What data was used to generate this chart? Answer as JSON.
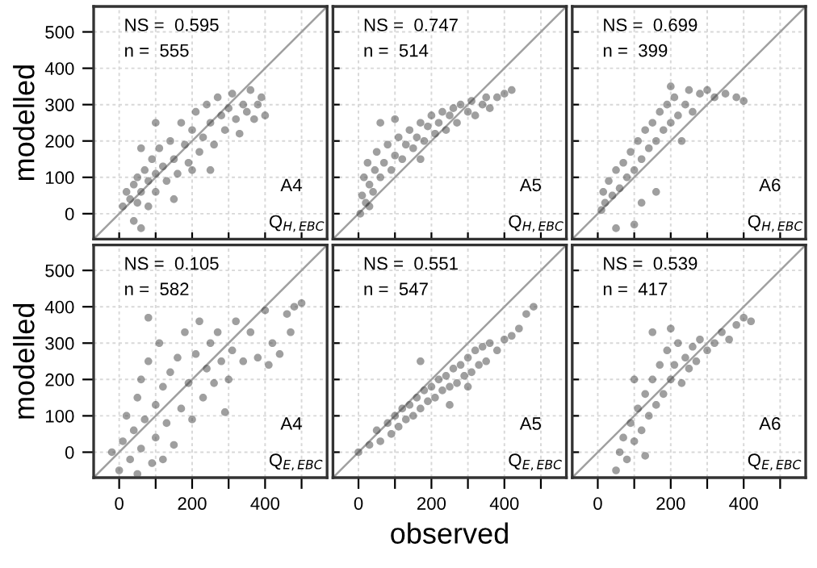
{
  "chart_data": [
    {
      "type": "scatter",
      "ylabel": "modelled",
      "annotations": [
        "NS =  0.595",
        "n =  555",
        "A4",
        "Q$_{H,EBC}$"
      ],
      "xlim": [
        -70,
        570
      ],
      "ylim": [
        -70,
        570
      ],
      "xticks": [
        0,
        {
          "value": 100,
          "label": null
        },
        200,
        {
          "value": 300,
          "label": null
        },
        400,
        {
          "value": 500,
          "label": null
        }
      ],
      "yticks": [
        0,
        100,
        200,
        300,
        400,
        500
      ],
      "tick_labels": "y",
      "grid": true,
      "series": [
        {
          "type": "scatter",
          "marker": "circle",
          "color": "#404040",
          "x": [
            10,
            20,
            30,
            40,
            50,
            50,
            60,
            70,
            80,
            80,
            90,
            100,
            100,
            110,
            120,
            130,
            140,
            150,
            160,
            170,
            180,
            190,
            200,
            210,
            220,
            230,
            240,
            250,
            260,
            270,
            280,
            290,
            300,
            310,
            320,
            330,
            340,
            350,
            360,
            370,
            380,
            390,
            400,
            40,
            60,
            150,
            200,
            60,
            100,
            250
          ],
          "values": [
            20,
            60,
            40,
            80,
            30,
            100,
            60,
            120,
            20,
            90,
            150,
            60,
            110,
            180,
            130,
            90,
            200,
            150,
            110,
            250,
            190,
            140,
            230,
            280,
            170,
            210,
            300,
            250,
            190,
            320,
            270,
            230,
            290,
            330,
            260,
            220,
            300,
            280,
            340,
            260,
            300,
            320,
            270,
            -20,
            -40,
            40,
            120,
            180,
            250,
            120
          ]
        },
        {
          "type": "line",
          "color": "#a0a0a0",
          "x": [
            -70,
            570
          ],
          "values": [
            -70,
            570
          ]
        }
      ]
    },
    {
      "type": "scatter",
      "annotations": [
        "NS =  0.747",
        "n =  514",
        "A5",
        "Q$_{H,EBC}$"
      ],
      "xlim": [
        -70,
        570
      ],
      "ylim": [
        -70,
        570
      ],
      "xticks": [
        0,
        {
          "value": 100,
          "label": null
        },
        200,
        {
          "value": 300,
          "label": null
        },
        400,
        {
          "value": 500,
          "label": null
        }
      ],
      "yticks": [
        0,
        100,
        200,
        300,
        400,
        500
      ],
      "tick_labels": false,
      "grid": true,
      "series": [
        {
          "type": "scatter",
          "marker": "circle",
          "color": "#404040",
          "x": [
            5,
            10,
            15,
            20,
            25,
            30,
            40,
            45,
            50,
            60,
            70,
            80,
            90,
            100,
            110,
            120,
            130,
            140,
            150,
            160,
            170,
            180,
            190,
            200,
            210,
            220,
            230,
            240,
            250,
            260,
            270,
            280,
            300,
            310,
            320,
            340,
            350,
            360,
            380,
            400,
            420,
            60,
            100,
            170,
            30
          ],
          "values": [
            0,
            50,
            100,
            30,
            140,
            80,
            60,
            120,
            170,
            100,
            140,
            190,
            120,
            160,
            210,
            150,
            190,
            230,
            180,
            210,
            250,
            200,
            240,
            270,
            220,
            250,
            280,
            230,
            270,
            290,
            250,
            300,
            280,
            310,
            270,
            300,
            320,
            290,
            320,
            330,
            340,
            250,
            260,
            150,
            20
          ]
        },
        {
          "type": "line",
          "color": "#a0a0a0",
          "x": [
            -70,
            570
          ],
          "values": [
            -70,
            570
          ]
        }
      ]
    },
    {
      "type": "scatter",
      "annotations": [
        "NS =  0.699",
        "n =  399",
        "A6",
        "Q$_{H,EBC}$"
      ],
      "xlim": [
        -70,
        570
      ],
      "ylim": [
        -70,
        570
      ],
      "xticks": [
        0,
        {
          "value": 100,
          "label": null
        },
        200,
        {
          "value": 300,
          "label": null
        },
        400,
        {
          "value": 500,
          "label": null
        }
      ],
      "yticks": [
        0,
        100,
        200,
        300,
        400,
        500
      ],
      "tick_labels": false,
      "grid": true,
      "series": [
        {
          "type": "scatter",
          "marker": "circle",
          "color": "#404040",
          "x": [
            10,
            15,
            20,
            30,
            40,
            50,
            60,
            70,
            80,
            90,
            100,
            110,
            120,
            130,
            140,
            150,
            160,
            170,
            180,
            190,
            200,
            210,
            220,
            240,
            250,
            260,
            280,
            300,
            320,
            350,
            380,
            400,
            200,
            100,
            50,
            120,
            160,
            230
          ],
          "values": [
            10,
            60,
            30,
            90,
            50,
            120,
            70,
            140,
            100,
            170,
            120,
            200,
            150,
            230,
            180,
            250,
            200,
            280,
            230,
            300,
            250,
            320,
            270,
            300,
            340,
            280,
            330,
            340,
            320,
            330,
            320,
            310,
            350,
            -30,
            -40,
            30,
            60,
            200
          ]
        },
        {
          "type": "line",
          "color": "#a0a0a0",
          "x": [
            -70,
            570
          ],
          "values": [
            -70,
            570
          ]
        }
      ]
    },
    {
      "type": "scatter",
      "ylabel": "modelled",
      "annotations": [
        "NS =  0.105",
        "n =  582",
        "A4",
        "Q$_{E,EBC}$"
      ],
      "xlim": [
        -70,
        570
      ],
      "ylim": [
        -70,
        570
      ],
      "xticks": [
        0,
        {
          "value": 100,
          "label": null
        },
        200,
        {
          "value": 300,
          "label": null
        },
        400,
        {
          "value": 500,
          "label": null
        }
      ],
      "yticks": [
        0,
        100,
        200,
        300,
        400,
        500
      ],
      "grid": true,
      "series": [
        {
          "type": "scatter",
          "marker": "circle",
          "color": "#404040",
          "x": [
            -20,
            0,
            10,
            20,
            30,
            40,
            50,
            60,
            60,
            70,
            80,
            90,
            100,
            100,
            110,
            120,
            130,
            140,
            150,
            160,
            170,
            180,
            190,
            200,
            210,
            220,
            230,
            240,
            250,
            260,
            270,
            280,
            290,
            300,
            310,
            320,
            340,
            360,
            380,
            400,
            410,
            420,
            440,
            460,
            480,
            500,
            470,
            120,
            80,
            50
          ],
          "values": [
            0,
            -50,
            30,
            100,
            -20,
            60,
            150,
            10,
            200,
            90,
            250,
            -30,
            130,
            40,
            300,
            180,
            80,
            220,
            20,
            260,
            120,
            330,
            190,
            90,
            270,
            360,
            150,
            230,
            300,
            190,
            330,
            250,
            110,
            200,
            280,
            360,
            250,
            330,
            260,
            390,
            240,
            300,
            270,
            380,
            400,
            410,
            330,
            -20,
            370,
            -60
          ]
        },
        {
          "type": "line",
          "color": "#a0a0a0",
          "x": [
            -70,
            570
          ],
          "values": [
            -70,
            570
          ]
        }
      ]
    },
    {
      "type": "scatter",
      "xlabel": "observed",
      "annotations": [
        "NS =  0.551",
        "n =  547",
        "A5",
        "Q$_{E,EBC}$"
      ],
      "xlim": [
        -70,
        570
      ],
      "ylim": [
        -70,
        570
      ],
      "xticks": [
        0,
        {
          "value": 100,
          "label": null
        },
        200,
        {
          "value": 300,
          "label": null
        },
        400,
        {
          "value": 500,
          "label": null
        }
      ],
      "yticks": [
        0,
        100,
        200,
        300,
        400,
        500
      ],
      "tick_labels": "x",
      "grid": true,
      "series": [
        {
          "type": "scatter",
          "marker": "circle",
          "color": "#404040",
          "x": [
            0,
            30,
            50,
            60,
            80,
            90,
            100,
            110,
            120,
            130,
            140,
            150,
            160,
            170,
            180,
            190,
            200,
            210,
            220,
            230,
            240,
            250,
            260,
            270,
            280,
            290,
            300,
            310,
            320,
            330,
            340,
            350,
            360,
            380,
            400,
            420,
            440,
            460,
            480,
            170,
            250,
            300
          ],
          "values": [
            0,
            20,
            60,
            30,
            80,
            50,
            100,
            70,
            120,
            90,
            130,
            100,
            150,
            120,
            170,
            140,
            180,
            150,
            200,
            170,
            210,
            180,
            230,
            190,
            240,
            210,
            260,
            220,
            280,
            240,
            290,
            250,
            300,
            280,
            310,
            320,
            340,
            380,
            400,
            250,
            130,
            180
          ]
        },
        {
          "type": "line",
          "color": "#a0a0a0",
          "x": [
            -70,
            570
          ],
          "values": [
            -70,
            570
          ]
        }
      ]
    },
    {
      "type": "scatter",
      "annotations": [
        "NS =  0.539",
        "n =  417",
        "A6",
        "Q$_{E,EBC}$"
      ],
      "xlim": [
        -70,
        570
      ],
      "ylim": [
        -70,
        570
      ],
      "xticks": [
        0,
        {
          "value": 100,
          "label": null
        },
        200,
        {
          "value": 300,
          "label": null
        },
        400,
        {
          "value": 500,
          "label": null
        }
      ],
      "yticks": [
        0,
        100,
        200,
        300,
        400,
        500
      ],
      "tick_labels": "x",
      "grid": true,
      "series": [
        {
          "type": "scatter",
          "marker": "circle",
          "color": "#404040",
          "x": [
            50,
            60,
            70,
            80,
            90,
            100,
            110,
            120,
            130,
            140,
            150,
            160,
            170,
            180,
            190,
            200,
            210,
            220,
            230,
            240,
            250,
            260,
            270,
            280,
            300,
            320,
            340,
            360,
            380,
            400,
            420,
            150,
            200,
            100,
            130
          ],
          "values": [
            -50,
            0,
            40,
            -20,
            80,
            30,
            120,
            60,
            160,
            100,
            200,
            130,
            240,
            160,
            280,
            200,
            240,
            300,
            190,
            260,
            230,
            290,
            250,
            310,
            280,
            300,
            330,
            310,
            350,
            370,
            360,
            330,
            340,
            200,
            -10
          ]
        },
        {
          "type": "line",
          "color": "#a0a0a0",
          "x": [
            -70,
            570
          ],
          "values": [
            -70,
            570
          ]
        }
      ]
    }
  ]
}
